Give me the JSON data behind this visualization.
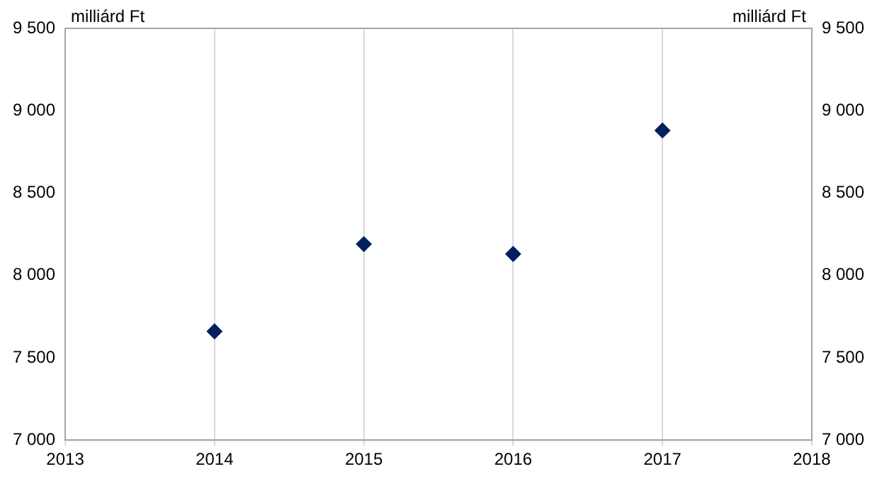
{
  "chart_data": {
    "type": "scatter",
    "ylabel": "milliárd Ft",
    "y2label": "milliárd Ft",
    "x": [
      2014,
      2015,
      2016,
      2017
    ],
    "series": [
      {
        "color": "#002060",
        "values": [
          7660,
          8190,
          8130,
          8880
        ]
      }
    ],
    "xlim": [
      2013,
      2018
    ],
    "xticks": [
      2013,
      2014,
      2015,
      2016,
      2017,
      2018
    ],
    "ylim": [
      7000,
      9500
    ],
    "yticks": [
      {
        "value": 7000,
        "label": "7 000"
      },
      {
        "value": 7500,
        "label": "7 500"
      },
      {
        "value": 8000,
        "label": "8 000"
      },
      {
        "value": 8500,
        "label": "8 500"
      },
      {
        "value": 9000,
        "label": "9 000"
      },
      {
        "value": 9500,
        "label": "9 500"
      }
    ],
    "y2lim": [
      7000,
      9500
    ],
    "y2ticks": [
      {
        "value": 7000,
        "label": "7 000"
      },
      {
        "value": 7500,
        "label": "7 500"
      },
      {
        "value": 8000,
        "label": "8 000"
      },
      {
        "value": 8500,
        "label": "8 500"
      },
      {
        "value": 9000,
        "label": "9 000"
      },
      {
        "value": 9500,
        "label": "9 500"
      }
    ],
    "grid": "x",
    "marker": "diamond",
    "legend": false
  }
}
